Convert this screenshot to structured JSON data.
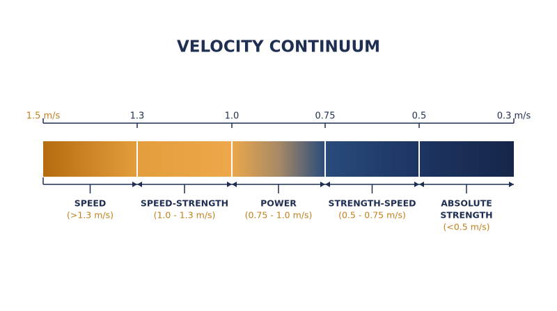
{
  "title": "VELOCITY CONTINUUM",
  "ticks": [
    "1.5 m/s",
    "1.3",
    "1.0",
    "0.75",
    "0.5",
    "0.3 m/s"
  ],
  "zones": [
    {
      "name": [
        "SPEED"
      ],
      "range": "(>1.3 m/s)"
    },
    {
      "name": [
        "SPEED-STRENGTH"
      ],
      "range": "(1.0 - 1.3 m/s)"
    },
    {
      "name": [
        "POWER"
      ],
      "range": "(0.75 - 1.0 m/s)"
    },
    {
      "name": [
        "STRENGTH-SPEED"
      ],
      "range": "(0.5 - 0.75 m/s)"
    },
    {
      "name": [
        "ABSOLUTE",
        "STRENGTH"
      ],
      "range": "(<0.5 m/s)"
    }
  ]
}
